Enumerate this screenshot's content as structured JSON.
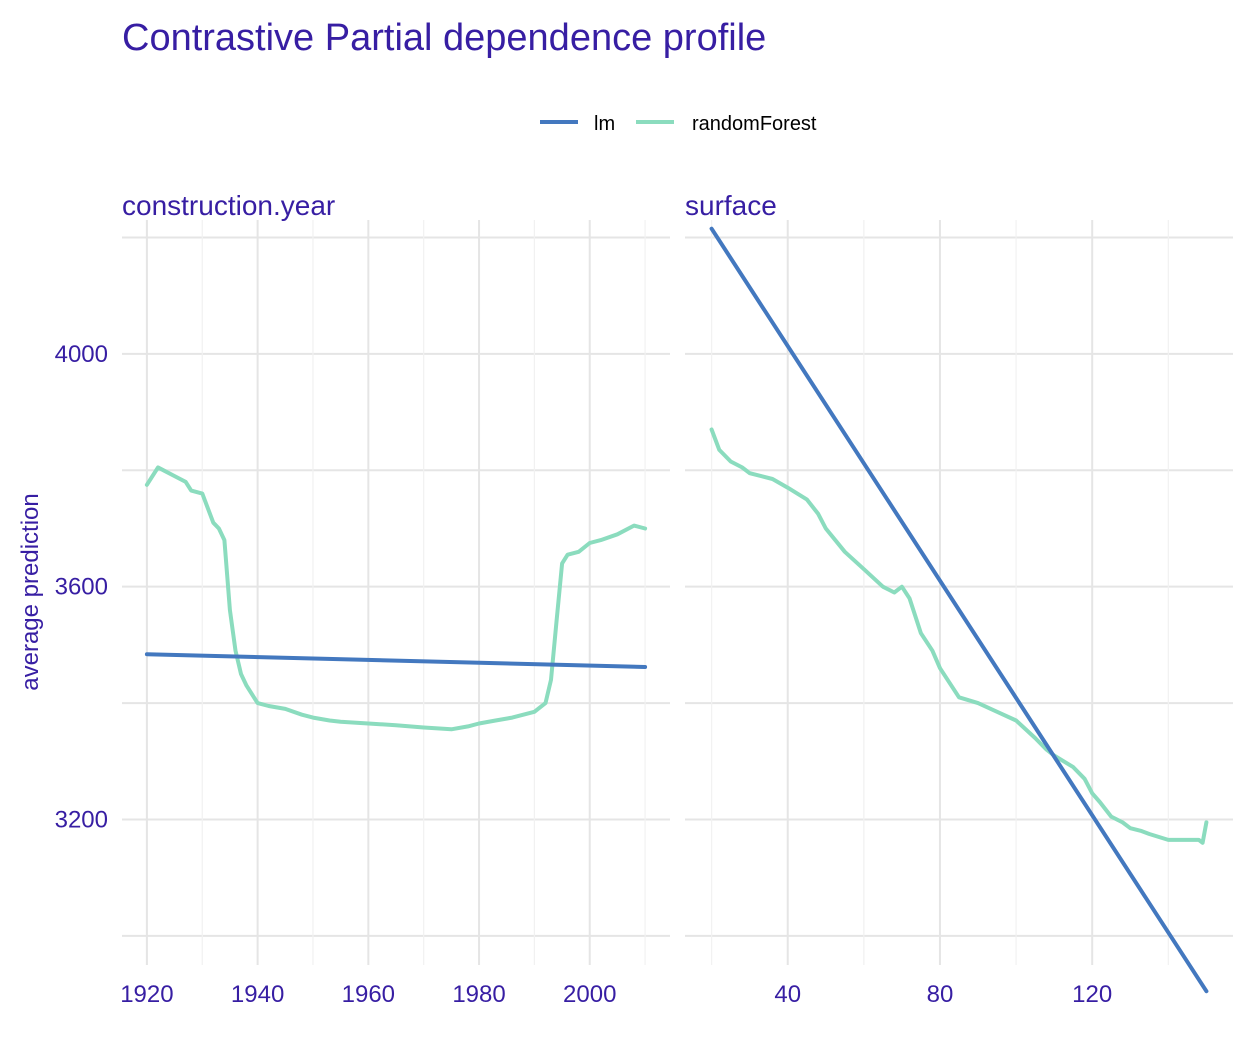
{
  "chart_data": {
    "type": "line",
    "title": "Contrastive Partial dependence profile",
    "ylabel": "average prediction",
    "ylim": [
      2950,
      4230
    ],
    "y_ticks": [
      3200,
      3600,
      4000
    ],
    "legend": {
      "position": "top",
      "entries": [
        {
          "name": "lm",
          "color": "#4378bf"
        },
        {
          "name": "randomForest",
          "color": "#8bdcbe"
        }
      ]
    },
    "grid": true,
    "facets": [
      {
        "name": "construction.year",
        "xlim": [
          1915.5,
          2014.5
        ],
        "x_ticks": [
          1920,
          1940,
          1960,
          1980,
          2000
        ],
        "series": [
          {
            "name": "lm",
            "color": "#4378bf",
            "x": [
              1920,
              2010
            ],
            "y": [
              3484,
              3462
            ]
          },
          {
            "name": "randomForest",
            "color": "#8bdcbe",
            "x": [
              1920,
              1922,
              1923,
              1925,
              1927,
              1928,
              1930,
              1932,
              1933,
              1934,
              1935,
              1936,
              1937,
              1938,
              1940,
              1942,
              1945,
              1948,
              1950,
              1953,
              1955,
              1960,
              1965,
              1970,
              1975,
              1978,
              1980,
              1983,
              1986,
              1988,
              1990,
              1992,
              1993,
              1994,
              1995,
              1996,
              1998,
              2000,
              2002,
              2005,
              2008,
              2010
            ],
            "y": [
              3775,
              3805,
              3800,
              3790,
              3780,
              3765,
              3760,
              3710,
              3700,
              3680,
              3560,
              3490,
              3450,
              3430,
              3400,
              3395,
              3390,
              3380,
              3375,
              3370,
              3368,
              3365,
              3362,
              3358,
              3355,
              3360,
              3365,
              3370,
              3375,
              3380,
              3385,
              3400,
              3440,
              3540,
              3640,
              3655,
              3660,
              3675,
              3680,
              3690,
              3705,
              3700
            ]
          }
        ]
      },
      {
        "name": "surface",
        "xlim": [
          13,
          157
        ],
        "x_ticks": [
          40,
          80,
          120
        ],
        "series": [
          {
            "name": "lm",
            "color": "#4378bf",
            "x": [
              20,
              150
            ],
            "y": [
              4215,
              2905
            ]
          },
          {
            "name": "randomForest",
            "color": "#8bdcbe",
            "x": [
              20,
              22,
              25,
              28,
              30,
              33,
              36,
              40,
              45,
              48,
              50,
              55,
              60,
              65,
              68,
              70,
              72,
              75,
              78,
              80,
              85,
              90,
              95,
              100,
              105,
              108,
              110,
              115,
              118,
              120,
              122,
              125,
              128,
              130,
              133,
              135,
              140,
              145,
              148,
              149,
              150
            ],
            "y": [
              3870,
              3835,
              3815,
              3805,
              3795,
              3790,
              3785,
              3770,
              3750,
              3725,
              3700,
              3660,
              3630,
              3600,
              3590,
              3600,
              3580,
              3520,
              3490,
              3460,
              3410,
              3400,
              3385,
              3370,
              3340,
              3320,
              3310,
              3290,
              3270,
              3245,
              3230,
              3205,
              3195,
              3185,
              3180,
              3175,
              3165,
              3165,
              3165,
              3160,
              3195
            ]
          }
        ]
      }
    ]
  }
}
